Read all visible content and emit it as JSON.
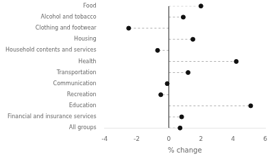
{
  "chart_data": {
    "type": "lollipop",
    "orientation": "horizontal",
    "categories": [
      "Food",
      "Alcohol and tobacco",
      "Clothing and footwear",
      "Housing",
      "Household contents and services",
      "Health",
      "Transportation",
      "Communication",
      "Recreation",
      "Education",
      "Financial and insurance services",
      "All groups"
    ],
    "values": [
      2.0,
      0.9,
      -2.5,
      1.5,
      -0.7,
      4.2,
      1.2,
      -0.1,
      -0.5,
      5.1,
      0.8,
      0.7
    ],
    "xlim": [
      -4,
      6
    ],
    "xticks": [
      -4,
      -2,
      0,
      2,
      4,
      6
    ],
    "xlabel": "% change",
    "color": "#111111",
    "marker": "circle",
    "line_style": "dashed",
    "grid": false
  }
}
